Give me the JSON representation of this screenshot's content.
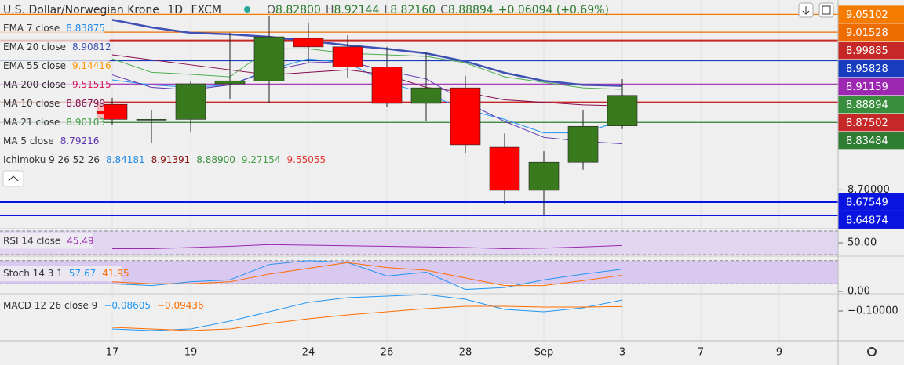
{
  "header": {
    "symbol": "U.S. Dollar/Norwegian Krone",
    "interval": "1D",
    "source": "FXCM",
    "ohlc": [
      {
        "label": "O",
        "value": "8.82800"
      },
      {
        "label": "H",
        "value": "8.92144"
      },
      {
        "label": "L",
        "value": "8.82160"
      },
      {
        "label": "C",
        "value": "8.88894"
      }
    ],
    "change": "+0.06094 (+0.69%)"
  },
  "chart_data": [
    {
      "type": "candlestick",
      "categories": [
        "17",
        null,
        "19",
        null,
        null,
        "24",
        null,
        "26",
        null,
        "28",
        null,
        "Sep",
        null,
        "3",
        null,
        "7",
        null,
        "9"
      ],
      "open": [
        8.871,
        8.841,
        8.841,
        8.912,
        8.918,
        9.003,
        8.986,
        8.946,
        8.873,
        8.904,
        8.785,
        8.699,
        8.755,
        8.828,
        null,
        null,
        null,
        null
      ],
      "high": [
        8.884,
        8.86,
        8.918,
        9.014,
        9.048,
        9.033,
        9.009,
        8.986,
        8.973,
        8.928,
        8.813,
        8.777,
        8.86,
        8.92144,
        null,
        null,
        null,
        null
      ],
      "low": [
        8.829,
        8.793,
        8.816,
        8.882,
        8.873,
        8.954,
        8.923,
        8.865,
        8.837,
        8.774,
        8.672,
        8.649,
        8.74,
        8.8216,
        null,
        null,
        null,
        null
      ],
      "close": [
        8.841,
        8.841,
        8.912,
        8.918,
        9.006,
        8.986,
        8.946,
        8.873,
        8.904,
        8.79,
        8.699,
        8.755,
        8.827,
        8.88894,
        null,
        null,
        null,
        null
      ],
      "up_color": "#3a7a1e",
      "down_color": "#ff0000",
      "ylim": [
        8.6221,
        9.0798
      ],
      "yticks": [
        {
          "value": 8.7,
          "label": "8.70000"
        }
      ],
      "series": [
        {
          "name": "EMA 7 close",
          "color": "#2196f3",
          "legend_values": [
            "8.83875"
          ],
          "legend_colors": [
            "#1e88e5"
          ],
          "values": [
            8.92,
            8.91,
            8.905,
            8.91,
            8.94,
            8.962,
            8.954,
            8.915,
            8.892,
            8.861,
            8.841,
            8.814,
            8.814,
            8.83875,
            null,
            null,
            null,
            null
          ]
        },
        {
          "name": "EMA 20 close",
          "color": "#3f51b5",
          "width": 2.5,
          "legend_values": [
            "8.90812"
          ],
          "legend_colors": [
            "#3f51b5"
          ],
          "values": [
            9.04,
            9.025,
            9.014,
            9.011,
            9.006,
            8.998,
            8.989,
            8.982,
            8.973,
            8.957,
            8.934,
            8.918,
            8.91,
            8.90812,
            null,
            null,
            null,
            null
          ]
        },
        {
          "name": "EMA 55 close",
          "color": "#ff9800",
          "legend_values": [
            "9.14416"
          ],
          "legend_colors": [
            "#ff9800"
          ]
        },
        {
          "name": "MA 200 close",
          "color": "#e91e63",
          "legend_values": [
            "9.51515"
          ],
          "legend_colors": [
            "#d81b60"
          ]
        },
        {
          "name": "MA 10 close",
          "color": "#880e4f",
          "legend_values": [
            "8.86799"
          ],
          "legend_colors": [
            "#880e4f"
          ],
          "values": [
            8.97,
            8.96,
            8.95,
            8.94,
            8.93,
            8.935,
            8.94,
            8.93,
            8.905,
            8.895,
            8.88,
            8.875,
            8.87,
            8.86799,
            null,
            null,
            null,
            null
          ]
        },
        {
          "name": "MA 21 close",
          "color": "#4caf50",
          "legend_values": [
            "8.90103"
          ],
          "legend_colors": [
            "#43a047"
          ],
          "values": [
            8.962,
            8.935,
            8.931,
            8.926,
            8.982,
            8.982,
            8.973,
            8.97,
            8.967,
            8.954,
            8.926,
            8.915,
            8.904,
            8.90103,
            null,
            null,
            null,
            null
          ]
        },
        {
          "name": "MA 5 close",
          "color": "#5e35b1",
          "legend_values": [
            "8.79216"
          ],
          "legend_colors": [
            "#5e35b1"
          ],
          "values": [
            8.93,
            8.905,
            8.9,
            8.91,
            8.938,
            8.954,
            8.957,
            8.938,
            8.922,
            8.876,
            8.837,
            8.805,
            8.797,
            8.79216,
            null,
            null,
            null,
            null
          ]
        },
        {
          "name": "Ichimoku 9 26 52 26",
          "color": "#2196f3",
          "legend_values": [
            "8.84181",
            "8.91391",
            "8.88900",
            "9.27154",
            "9.55055"
          ],
          "legend_colors": [
            "#1e88e5",
            "#880e0e",
            "#388e3c",
            "#43a047",
            "#e53935"
          ]
        }
      ],
      "price_labels": [
        {
          "value": 9.05102,
          "color": "#f57c00",
          "line": true
        },
        {
          "value": 9.01528,
          "color": "#ef6c00",
          "line": true
        },
        {
          "value": 8.99885,
          "color": "#c62828",
          "line": true
        },
        {
          "value": 8.95828,
          "color": "#1a3dbf",
          "line": true
        },
        {
          "value": 8.91159,
          "color": "#9c27b0",
          "line": true
        },
        {
          "value": 8.88894,
          "color": "#388e3c",
          "line": false
        },
        {
          "value": 8.87502,
          "color": "#c62828",
          "line": true
        },
        {
          "value": 8.83484,
          "color": "#2e7d32",
          "line": true
        },
        {
          "value": 8.67549,
          "color": "#0a14e0",
          "line": true
        },
        {
          "value": 8.64874,
          "color": "#0a14e0",
          "line": true
        }
      ]
    },
    {
      "type": "line",
      "title": "RSI 14 close",
      "ylim": [
        27.33,
        74
      ],
      "yticks": [
        {
          "value": 50,
          "label": "50.00"
        }
      ],
      "band": [
        30,
        70
      ],
      "band_color": "#e1d5f2",
      "series": [
        {
          "color": "#9c27b0",
          "legend_value": "45.49",
          "values": [
            40,
            40,
            42,
            44,
            47,
            46,
            45,
            44,
            43,
            42,
            40,
            41,
            43,
            45.49,
            null,
            null,
            null,
            null
          ]
        }
      ]
    },
    {
      "type": "line",
      "title": "Stoch 14 3 1",
      "ylim": [
        -6.1,
        91.8
      ],
      "yticks": [
        {
          "value": 0,
          "label": "0.00"
        }
      ],
      "band": [
        20,
        80
      ],
      "band_color": "#d9c8f0",
      "series": [
        {
          "color": "#2196f3",
          "legend_value": "57.67",
          "values": [
            20,
            15,
            25,
            30,
            70,
            80,
            75,
            40,
            50,
            5,
            10,
            30,
            45,
            57.67,
            null,
            null,
            null,
            null
          ]
        },
        {
          "color": "#ff6d00",
          "legend_value": "41.95",
          "values": [
            25,
            20,
            20,
            25,
            45,
            60,
            75,
            62,
            55,
            35,
            15,
            15,
            28,
            41.95,
            null,
            null,
            null,
            null
          ]
        }
      ]
    },
    {
      "type": "line",
      "title": "MACD 12 26 close 9",
      "ylim": [
        -0.138,
        -0.078
      ],
      "yticks": [
        {
          "value": -0.1,
          "label": "−0.10000"
        }
      ],
      "series": [
        {
          "color": "#2196f3",
          "legend_value": "−0.08605",
          "values": [
            -0.123,
            -0.125,
            -0.123,
            -0.113,
            -0.101,
            -0.089,
            -0.083,
            -0.081,
            -0.079,
            -0.085,
            -0.098,
            -0.101,
            -0.096,
            -0.08605,
            null,
            null,
            null,
            null
          ]
        },
        {
          "color": "#ff6d00",
          "legend_value": "−0.09436",
          "values": [
            -0.121,
            -0.123,
            -0.125,
            -0.123,
            -0.116,
            -0.11,
            -0.105,
            -0.101,
            -0.097,
            -0.094,
            -0.094,
            -0.095,
            -0.095,
            -0.09436,
            null,
            null,
            null,
            null
          ]
        }
      ]
    }
  ]
}
